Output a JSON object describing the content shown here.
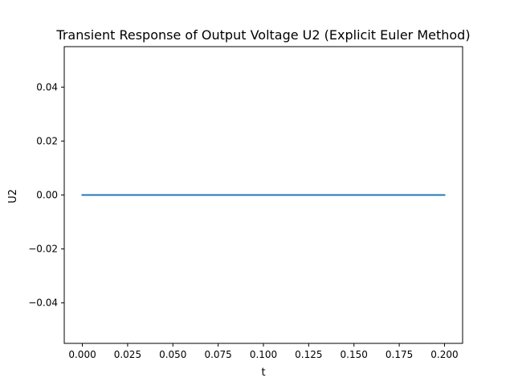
{
  "chart_data": {
    "type": "line",
    "title": "Transient Response of Output Voltage U2 (Explicit Euler Method)",
    "xlabel": "t",
    "ylabel": "U2",
    "xlim": [
      -0.01,
      0.21
    ],
    "ylim": [
      -0.055,
      0.055
    ],
    "grid": false,
    "x_ticks": [
      0.0,
      0.025,
      0.05,
      0.075,
      0.1,
      0.125,
      0.15,
      0.175,
      0.2
    ],
    "x_tick_labels": [
      "0.000",
      "0.025",
      "0.050",
      "0.075",
      "0.100",
      "0.125",
      "0.150",
      "0.175",
      "0.200"
    ],
    "y_ticks": [
      -0.04,
      -0.02,
      0.0,
      0.02,
      0.04
    ],
    "y_tick_labels": [
      "−0.04",
      "−0.02",
      "0.00",
      "0.02",
      "0.04"
    ],
    "series": [
      {
        "color": "#1f77b4",
        "x": [
          0.0,
          0.025,
          0.05,
          0.075,
          0.1,
          0.125,
          0.15,
          0.175,
          0.2
        ],
        "y": [
          0.0,
          0.0,
          0.0,
          0.0,
          0.0,
          0.0,
          0.0,
          0.0,
          0.0
        ]
      }
    ]
  }
}
